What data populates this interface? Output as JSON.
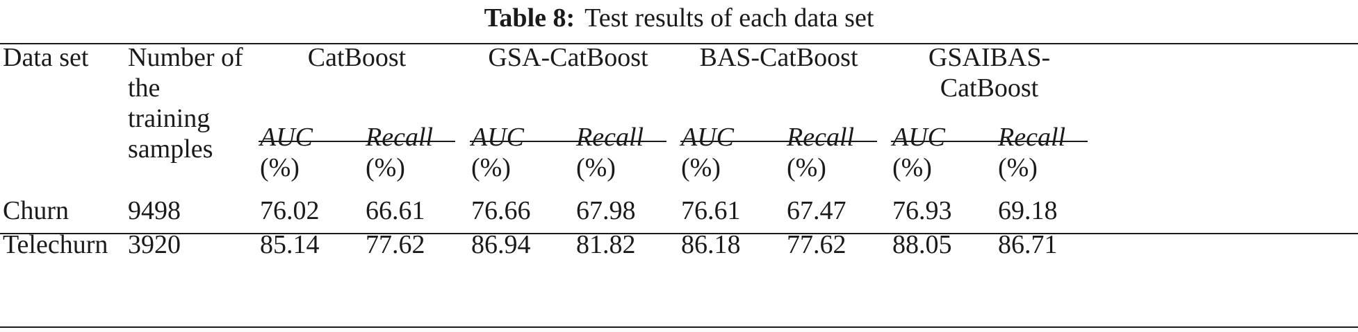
{
  "caption": {
    "label": "Table 8:",
    "text": "Test results of each data set"
  },
  "header": {
    "dataset": "Data set",
    "samples": [
      "Number of",
      "the",
      "training",
      "samples"
    ],
    "groups": [
      {
        "lines": [
          "CatBoost"
        ]
      },
      {
        "lines": [
          "GSA-CatBoost"
        ]
      },
      {
        "lines": [
          "BAS-CatBoost"
        ]
      },
      {
        "lines": [
          "GSAIBAS-",
          "CatBoost"
        ]
      }
    ],
    "metric_names": [
      "AUC",
      "Recall"
    ],
    "metric_unit": "(%)"
  },
  "rows": [
    {
      "dataset": "Churn",
      "samples": "9498",
      "values": [
        "76.02",
        "66.61",
        "76.66",
        "67.98",
        "76.61",
        "67.47",
        "76.93",
        "69.18"
      ]
    },
    {
      "dataset": "Telechurn",
      "samples": "3920",
      "values": [
        "85.14",
        "77.62",
        "86.94",
        "81.82",
        "86.18",
        "77.62",
        "88.05",
        "86.71"
      ]
    }
  ]
}
